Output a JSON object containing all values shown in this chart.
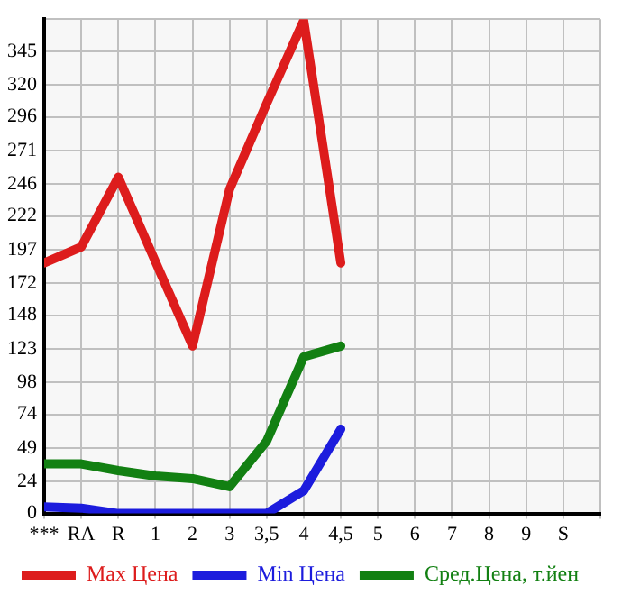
{
  "chart_data": {
    "type": "line",
    "categories": [
      "***",
      "RA",
      "R",
      "1",
      "2",
      "3",
      "3,5",
      "4",
      "4,5",
      "5",
      "6",
      "7",
      "8",
      "9",
      "S"
    ],
    "series": [
      {
        "name": "Max Цена",
        "color": "#dd1c1c",
        "values": [
          187,
          199,
          251,
          188,
          125,
          242,
          306,
          368,
          187,
          null,
          null,
          null,
          null,
          null,
          null
        ]
      },
      {
        "name": "Min Цена",
        "color": "#1c1cdd",
        "values": [
          5,
          4,
          0,
          0,
          0,
          0,
          0,
          17,
          63,
          null,
          null,
          null,
          null,
          null,
          null
        ]
      },
      {
        "name": "Сред.Цена, т.йен",
        "color": "#128012",
        "values": [
          37,
          37,
          32,
          28,
          26,
          20,
          54,
          117,
          125,
          null,
          null,
          null,
          null,
          null,
          null
        ]
      }
    ],
    "ylim": [
      0,
      369
    ],
    "yticks": [
      0,
      24,
      49,
      74,
      98,
      123,
      148,
      172,
      197,
      222,
      246,
      271,
      296,
      320,
      345
    ],
    "grid": true,
    "legend": "bottom",
    "marker": "none",
    "line_style": "solid"
  }
}
